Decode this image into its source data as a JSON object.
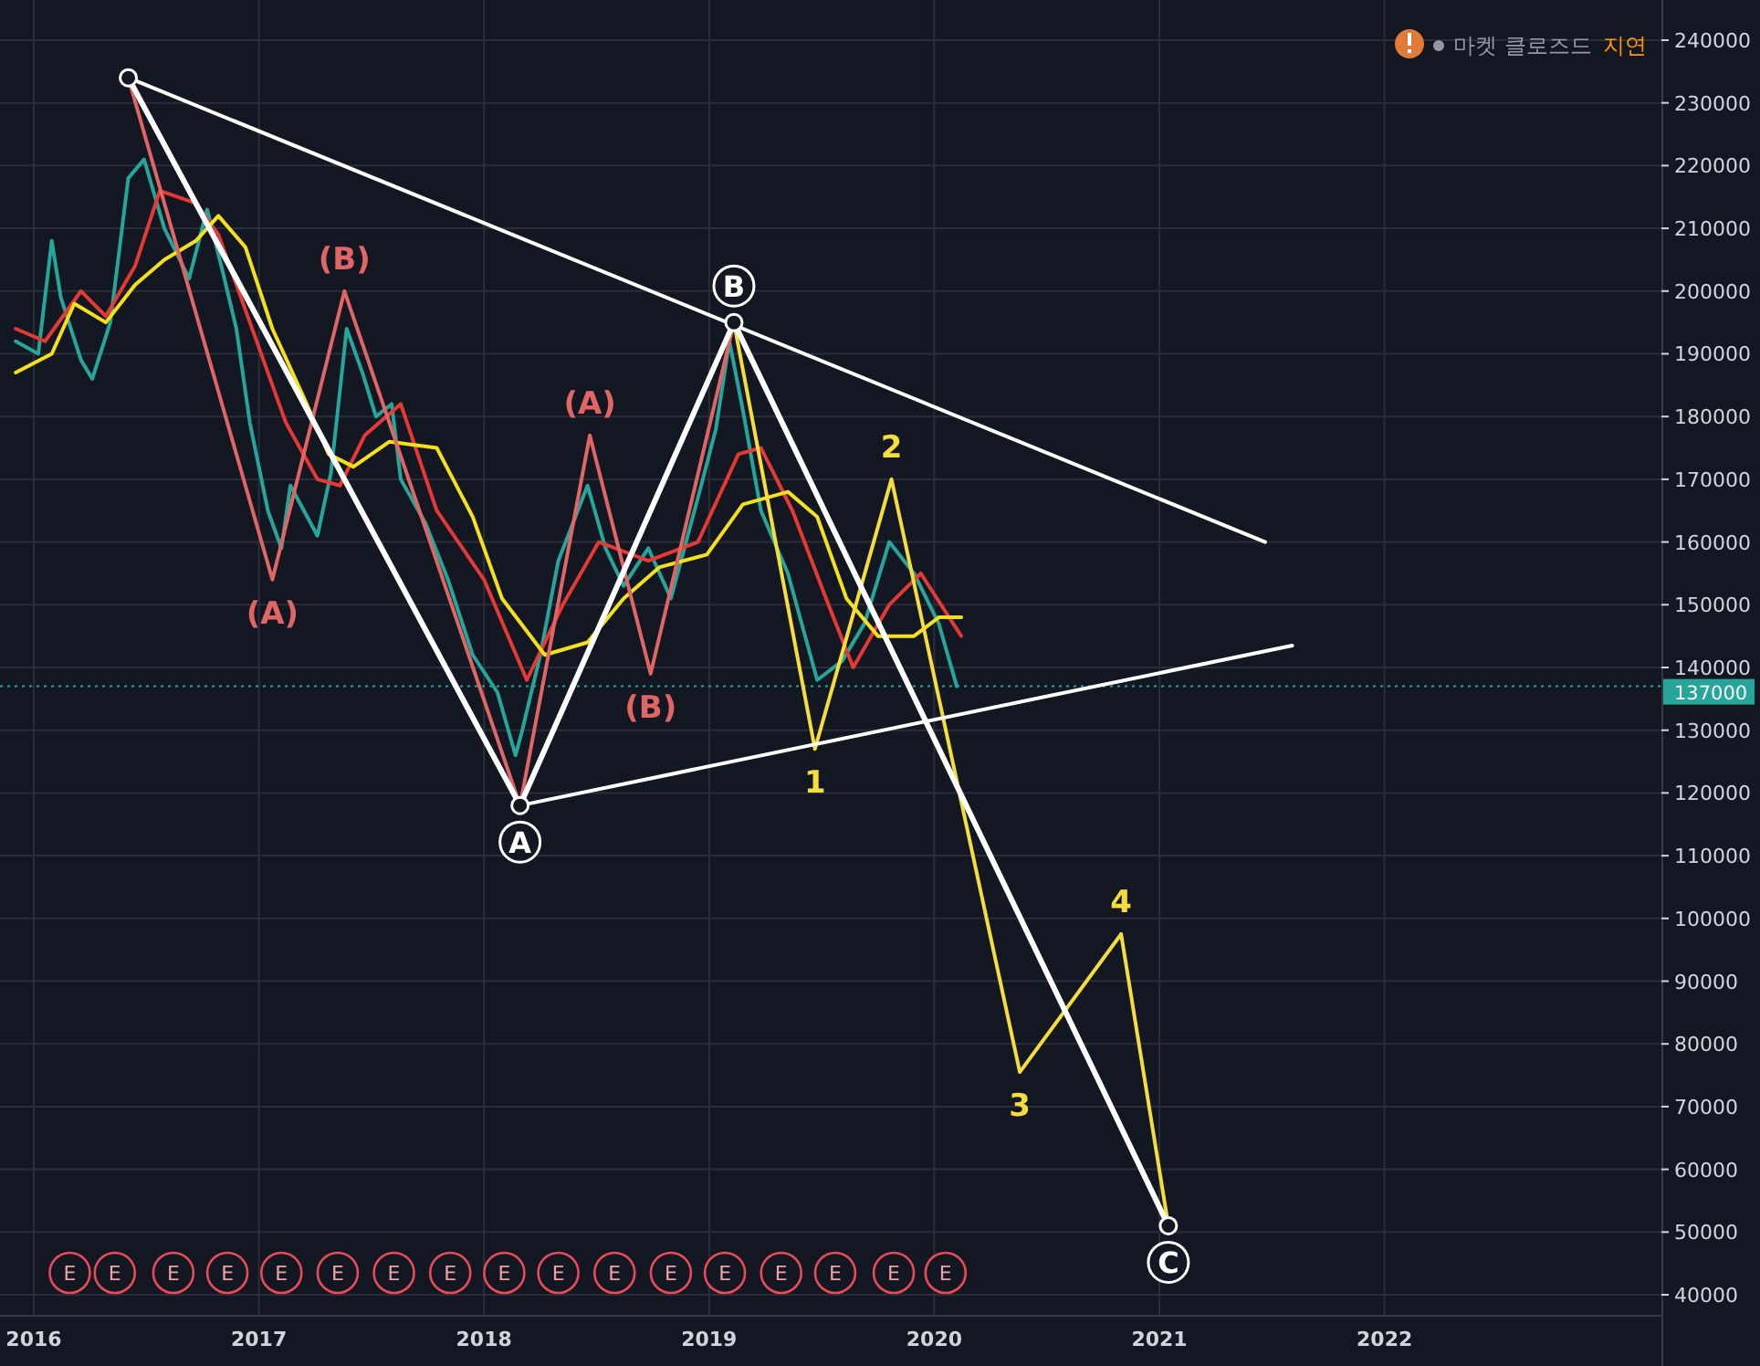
{
  "chart_data": {
    "type": "line",
    "xlim": [
      2015.85,
      2023.23
    ],
    "ylim": [
      36800,
      246400
    ],
    "xticks": [
      2016,
      2017,
      2018,
      2019,
      2020,
      2021,
      2022
    ],
    "yticks": [
      40000,
      50000,
      60000,
      70000,
      80000,
      90000,
      100000,
      110000,
      120000,
      130000,
      140000,
      150000,
      160000,
      170000,
      180000,
      190000,
      200000,
      210000,
      220000,
      230000,
      240000
    ],
    "grid": true,
    "series": [
      {
        "color": "#26a69a",
        "x": [
          2015.92,
          2016.02,
          2016.08,
          2016.12,
          2016.21,
          2016.26,
          2016.34,
          2016.42,
          2016.49,
          2016.58,
          2016.69,
          2016.77,
          2016.84,
          2016.9,
          2016.96,
          2017.04,
          2017.1,
          2017.14,
          2017.26,
          2017.32,
          2017.39,
          2017.46,
          2017.52,
          2017.59,
          2017.63,
          2017.74,
          2017.84,
          2017.95,
          2018.06,
          2018.14,
          2018.17,
          2018.25,
          2018.33,
          2018.46,
          2018.54,
          2018.62,
          2018.73,
          2018.83,
          2018.95,
          2019.03,
          2019.09,
          2019.15,
          2019.23,
          2019.35,
          2019.48,
          2019.59,
          2019.69,
          2019.8,
          2019.91,
          2020.02,
          2020.1
        ],
        "values": [
          192000,
          190000,
          208000,
          199000,
          189000,
          186000,
          195000,
          218000,
          221000,
          210000,
          202000,
          213000,
          203000,
          194000,
          179000,
          165000,
          159000,
          169000,
          161000,
          171000,
          194000,
          187000,
          180000,
          182000,
          170000,
          163000,
          154000,
          142000,
          136000,
          126000,
          130000,
          142000,
          157000,
          169000,
          159000,
          153000,
          159000,
          151000,
          167000,
          178000,
          192000,
          181000,
          165000,
          155000,
          138000,
          141000,
          147000,
          160000,
          155000,
          147000,
          137000
        ]
      },
      {
        "color": "#e53935",
        "x": [
          2015.92,
          2016.05,
          2016.21,
          2016.32,
          2016.45,
          2016.56,
          2016.72,
          2016.82,
          2016.98,
          2017.12,
          2017.26,
          2017.36,
          2017.47,
          2017.63,
          2017.79,
          2018.0,
          2018.19,
          2018.35,
          2018.51,
          2018.73,
          2018.95,
          2019.13,
          2019.23,
          2019.37,
          2019.53,
          2019.64,
          2019.8,
          2019.94,
          2020.12
        ],
        "values": [
          194000,
          192000,
          200000,
          196000,
          204000,
          216000,
          214000,
          209000,
          193000,
          179000,
          170000,
          169000,
          177000,
          182000,
          165000,
          154000,
          138000,
          150000,
          160000,
          157000,
          160000,
          174000,
          175000,
          165000,
          150000,
          140000,
          150000,
          155000,
          145000
        ]
      },
      {
        "color": "#f5e11a",
        "x": [
          2015.92,
          2016.08,
          2016.18,
          2016.32,
          2016.45,
          2016.58,
          2016.72,
          2016.82,
          2016.94,
          2017.06,
          2017.2,
          2017.31,
          2017.42,
          2017.58,
          2017.79,
          2017.95,
          2018.08,
          2018.27,
          2018.46,
          2018.62,
          2018.78,
          2018.99,
          2019.15,
          2019.35,
          2019.48,
          2019.61,
          2019.75,
          2019.91,
          2020.02,
          2020.12
        ],
        "values": [
          187000,
          190000,
          198000,
          195000,
          201000,
          205000,
          208000,
          212000,
          207000,
          194000,
          183000,
          174000,
          172000,
          176000,
          175000,
          164000,
          151000,
          142000,
          144000,
          151000,
          156000,
          158000,
          166000,
          168000,
          164000,
          151000,
          145000,
          145000,
          148000,
          148000
        ]
      },
      {
        "color": "#e06666",
        "x": [
          2016.42,
          2017.06,
          2017.38,
          2018.16,
          2018.47,
          2018.74,
          2019.11
        ],
        "values": [
          234000,
          154000,
          200000,
          118000,
          177000,
          139000,
          195000
        ]
      },
      {
        "color": "#f5dd3c",
        "x": [
          2019.11,
          2019.47,
          2019.81,
          2020.38,
          2020.83,
          2021.04
        ],
        "values": [
          195000,
          127000,
          170000,
          75500,
          97500,
          51000
        ]
      },
      {
        "color": "#ffffff",
        "x": [
          2016.42,
          2021.47
        ],
        "values": [
          234000,
          160000
        ]
      },
      {
        "color": "#ffffff",
        "x": [
          2018.16,
          2021.59
        ],
        "values": [
          118000,
          143500
        ]
      },
      {
        "color": "#ffffff",
        "marker": "circle",
        "x": [
          2016.42,
          2018.16,
          2019.11,
          2021.04
        ],
        "values": [
          234000,
          118000,
          195000,
          51000
        ]
      }
    ],
    "ref_lines": [
      {
        "axis": "y",
        "value": 137000,
        "label": "137000",
        "color": "#26a69a",
        "line_style": "dotted"
      }
    ],
    "annotations": [
      {
        "text": "(A)",
        "x": 2017.06,
        "y": 154000
      },
      {
        "text": "(B)",
        "x": 2017.38,
        "y": 200000
      },
      {
        "text": "(A)",
        "x": 2018.47,
        "y": 177000
      },
      {
        "text": "(B)",
        "x": 2018.74,
        "y": 139000
      },
      {
        "text": "A",
        "x": 2018.16,
        "y": 118000
      },
      {
        "text": "B",
        "x": 2019.11,
        "y": 195000
      },
      {
        "text": "C",
        "x": 2021.04,
        "y": 51000
      },
      {
        "text": "1",
        "x": 2019.47,
        "y": 127000
      },
      {
        "text": "2",
        "x": 2019.81,
        "y": 170000
      },
      {
        "text": "3",
        "x": 2020.38,
        "y": 75500
      },
      {
        "text": "4",
        "x": 2020.83,
        "y": 97500
      },
      {
        "text": "E",
        "x": 2016.16,
        "y": 43500
      },
      {
        "text": "E",
        "x": 2016.36,
        "y": 43500
      },
      {
        "text": "E",
        "x": 2016.62,
        "y": 43500
      },
      {
        "text": "E",
        "x": 2016.86,
        "y": 43500
      },
      {
        "text": "E",
        "x": 2017.1,
        "y": 43500
      },
      {
        "text": "E",
        "x": 2017.35,
        "y": 43500
      },
      {
        "text": "E",
        "x": 2017.6,
        "y": 43500
      },
      {
        "text": "E",
        "x": 2017.85,
        "y": 43500
      },
      {
        "text": "E",
        "x": 2018.09,
        "y": 43500
      },
      {
        "text": "E",
        "x": 2018.33,
        "y": 43500
      },
      {
        "text": "E",
        "x": 2018.58,
        "y": 43500
      },
      {
        "text": "E",
        "x": 2018.83,
        "y": 43500
      },
      {
        "text": "E",
        "x": 2019.07,
        "y": 43500
      },
      {
        "text": "E",
        "x": 2019.32,
        "y": 43500
      },
      {
        "text": "E",
        "x": 2019.56,
        "y": 43500
      },
      {
        "text": "E",
        "x": 2019.82,
        "y": 43500
      },
      {
        "text": "E",
        "x": 2020.05,
        "y": 43500
      },
      "마켓 클로즈드",
      "지연"
    ]
  }
}
